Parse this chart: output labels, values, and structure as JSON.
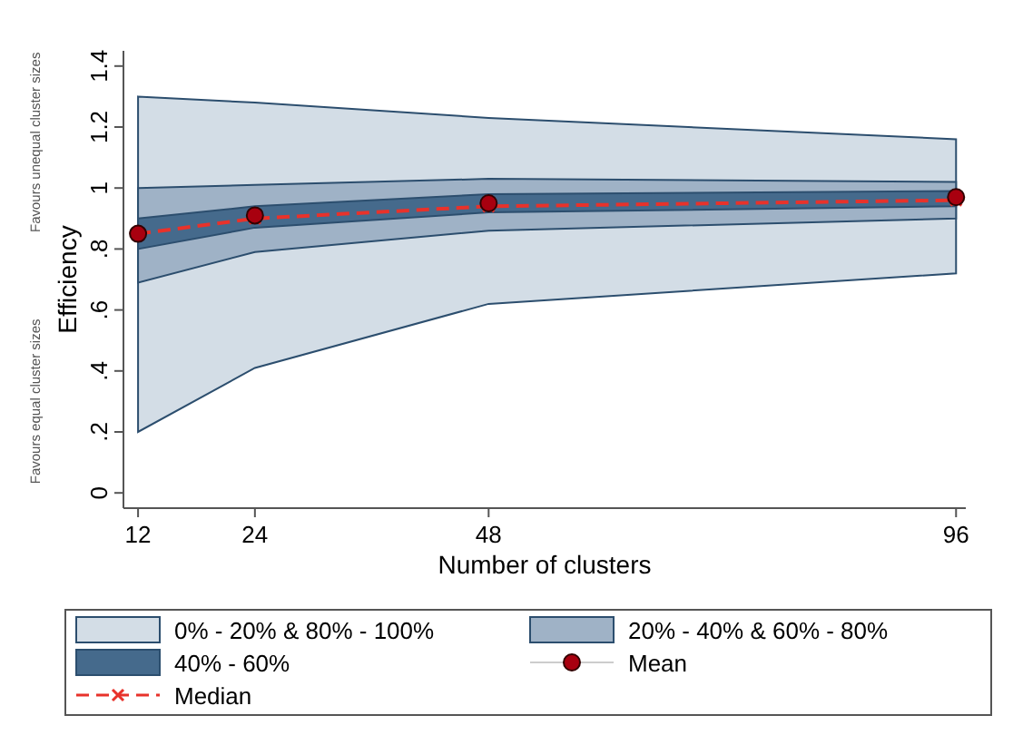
{
  "chart_data": {
    "type": "area",
    "xlabel": "Number of clusters",
    "ylabel": "Efficiency",
    "x": [
      12,
      24,
      48,
      96
    ],
    "xlim": [
      10.5,
      97
    ],
    "xticks": [
      12,
      24,
      48,
      96
    ],
    "ylim": [
      -0.05,
      1.45
    ],
    "yticks": [
      0,
      {
        "value": 0.2,
        "label": ".2"
      },
      {
        "value": 0.4,
        "label": ".4"
      },
      {
        "value": 0.6,
        "label": ".6"
      },
      {
        "value": 0.8,
        "label": ".8"
      },
      1,
      1.2,
      1.4
    ],
    "grid": false,
    "legend": "bottom",
    "annotations": [
      "Favours unequal cluster sizes",
      "Favours equal cluster sizes"
    ],
    "series": [
      {
        "type": "line",
        "name": "0% - 20% & 80% - 100%",
        "color": "#d3dde6",
        "values": [
          null,
          null,
          null,
          null
        ],
        "upper": [
          1.3,
          1.28,
          1.23,
          1.16
        ],
        "lower": [
          0.2,
          0.41,
          0.62,
          0.72
        ]
      },
      {
        "type": "line",
        "name": "20% - 40% & 60% - 80%",
        "color": "#9fb2c6",
        "values": [
          null,
          null,
          null,
          null
        ],
        "upper": [
          1.0,
          1.01,
          1.03,
          1.02
        ],
        "lower": [
          0.69,
          0.79,
          0.86,
          0.9
        ]
      },
      {
        "type": "line",
        "name": "40% - 60%",
        "color": "#456a8c",
        "values": [
          null,
          null,
          null,
          null
        ],
        "upper": [
          0.9,
          0.94,
          0.98,
          0.99
        ],
        "lower": [
          0.8,
          0.87,
          0.92,
          0.94
        ]
      },
      {
        "type": "line",
        "name": "Median",
        "color": "#e8322b",
        "line_style": "dashed",
        "marker": "cross",
        "values": [
          0.85,
          0.9,
          0.94,
          0.96
        ]
      },
      {
        "type": "scatter",
        "name": "Mean",
        "color": "#a8000f",
        "marker": "circle",
        "values": [
          0.85,
          0.91,
          0.95,
          0.97
        ]
      }
    ]
  }
}
